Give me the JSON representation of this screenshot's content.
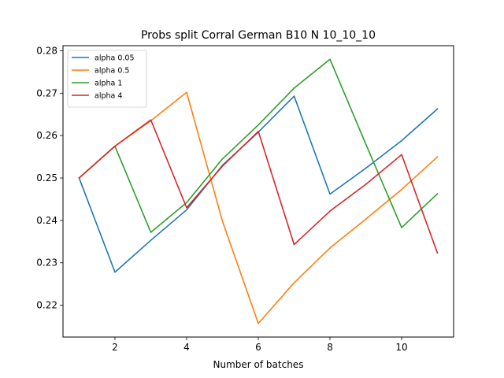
{
  "chart_data": {
    "type": "line",
    "title": "Probs split Corral German B10 N 10_10_10",
    "xlabel": "Number of batches",
    "ylabel": "",
    "xlim": [
      0.55,
      11.45
    ],
    "ylim": [
      0.2125,
      0.2812
    ],
    "xticks": [
      2,
      4,
      6,
      8,
      10
    ],
    "xtick_labels": [
      "2",
      "4",
      "6",
      "8",
      "10"
    ],
    "yticks": [
      0.22,
      0.23,
      0.24,
      0.25,
      0.26,
      0.27,
      0.28
    ],
    "ytick_labels": [
      "0.22",
      "0.23",
      "0.24",
      "0.25",
      "0.26",
      "0.27",
      "0.28"
    ],
    "grid": false,
    "legend_position": "top-left",
    "x": [
      1,
      2,
      3,
      4,
      5,
      6,
      7,
      8,
      9,
      10,
      11
    ],
    "series": [
      {
        "name": "alpha 0.05",
        "color": "#1f77b4",
        "values": [
          0.25,
          0.2278,
          0.2353,
          0.2425,
          0.253,
          0.2608,
          0.2693,
          0.2462,
          0.2523,
          0.2588,
          0.2663
        ]
      },
      {
        "name": "alpha 0.5",
        "color": "#ff7f0e",
        "values": [
          0.25,
          0.2575,
          0.2635,
          0.2702,
          0.2398,
          0.2157,
          0.2253,
          0.2335,
          0.2403,
          0.2473,
          0.255
        ]
      },
      {
        "name": "alpha 1",
        "color": "#2ca02c",
        "values": [
          0.25,
          0.2575,
          0.2372,
          0.2442,
          0.2545,
          0.2625,
          0.2712,
          0.278,
          0.258,
          0.2383,
          0.2463
        ]
      },
      {
        "name": "alpha 4",
        "color": "#d62728",
        "values": [
          0.25,
          0.2575,
          0.2637,
          0.243,
          0.2528,
          0.261,
          0.2343,
          0.2422,
          0.2485,
          0.2555,
          0.2323
        ]
      }
    ]
  }
}
